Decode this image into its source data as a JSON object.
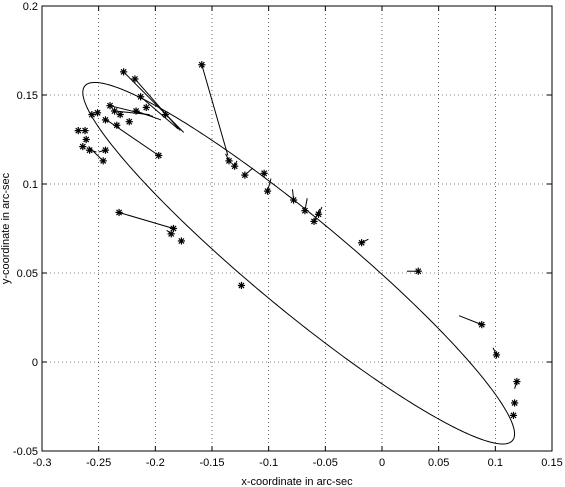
{
  "chart_data": {
    "type": "scatter",
    "xlabel": "x-coordinate in arc-sec",
    "ylabel": "y-coordinate in arc-sec",
    "xlim": [
      -0.3,
      0.15
    ],
    "ylim": [
      -0.05,
      0.2
    ],
    "xticks": [
      "-0.3",
      "-0.25",
      "-0.2",
      "-0.15",
      "-0.1",
      "-0.05",
      "0",
      "0.05",
      "0.1",
      "0.15"
    ],
    "yticks": [
      "-0.05",
      "0",
      "0.05",
      "0.1",
      "0.15",
      "0.2"
    ],
    "xtick_values": [
      -0.3,
      -0.25,
      -0.2,
      -0.15,
      -0.1,
      -0.05,
      0,
      0.05,
      0.1,
      0.15
    ],
    "ytick_values": [
      -0.05,
      0,
      0.05,
      0.1,
      0.15,
      0.2
    ],
    "grid": true,
    "ellipse": {
      "center": [
        -0.0735,
        0.0555
      ],
      "semi_major": 0.2138,
      "semi_minor": 0.0297,
      "angle_deg": -27.3
    },
    "points": [
      {
        "x": -0.159,
        "y": 0.167
      },
      {
        "x": -0.228,
        "y": 0.163
      },
      {
        "x": -0.218,
        "y": 0.159
      },
      {
        "x": -0.213,
        "y": 0.149
      },
      {
        "x": -0.208,
        "y": 0.143
      },
      {
        "x": -0.217,
        "y": 0.141
      },
      {
        "x": -0.24,
        "y": 0.144
      },
      {
        "x": -0.236,
        "y": 0.141
      },
      {
        "x": -0.231,
        "y": 0.139
      },
      {
        "x": -0.251,
        "y": 0.14
      },
      {
        "x": -0.256,
        "y": 0.139
      },
      {
        "x": -0.244,
        "y": 0.136
      },
      {
        "x": -0.234,
        "y": 0.133
      },
      {
        "x": -0.223,
        "y": 0.135
      },
      {
        "x": -0.191,
        "y": 0.139
      },
      {
        "x": -0.268,
        "y": 0.13
      },
      {
        "x": -0.262,
        "y": 0.13
      },
      {
        "x": -0.261,
        "y": 0.125
      },
      {
        "x": -0.264,
        "y": 0.121
      },
      {
        "x": -0.258,
        "y": 0.119
      },
      {
        "x": -0.244,
        "y": 0.119
      },
      {
        "x": -0.246,
        "y": 0.113
      },
      {
        "x": -0.197,
        "y": 0.116
      },
      {
        "x": -0.135,
        "y": 0.113
      },
      {
        "x": -0.13,
        "y": 0.11
      },
      {
        "x": -0.121,
        "y": 0.105
      },
      {
        "x": -0.104,
        "y": 0.106
      },
      {
        "x": -0.101,
        "y": 0.096
      },
      {
        "x": -0.078,
        "y": 0.091
      },
      {
        "x": -0.068,
        "y": 0.085
      },
      {
        "x": -0.056,
        "y": 0.083
      },
      {
        "x": -0.06,
        "y": 0.079
      },
      {
        "x": -0.018,
        "y": 0.067
      },
      {
        "x": 0.032,
        "y": 0.051
      },
      {
        "x": 0.088,
        "y": 0.021
      },
      {
        "x": 0.101,
        "y": 0.004
      },
      {
        "x": 0.119,
        "y": -0.011
      },
      {
        "x": 0.117,
        "y": -0.023
      },
      {
        "x": 0.116,
        "y": -0.03
      },
      {
        "x": -0.232,
        "y": 0.084
      },
      {
        "x": -0.184,
        "y": 0.075
      },
      {
        "x": -0.186,
        "y": 0.072
      },
      {
        "x": -0.177,
        "y": 0.068
      },
      {
        "x": -0.124,
        "y": 0.043
      }
    ],
    "residuals": [
      {
        "from": [
          -0.159,
          0.167
        ],
        "to": [
          -0.136,
          0.116
        ]
      },
      {
        "from": [
          -0.228,
          0.163
        ],
        "to": [
          -0.175,
          0.129
        ]
      },
      {
        "from": [
          -0.218,
          0.159
        ],
        "to": [
          -0.178,
          0.13
        ]
      },
      {
        "from": [
          -0.213,
          0.149
        ],
        "to": [
          -0.18,
          0.131
        ]
      },
      {
        "from": [
          -0.24,
          0.144
        ],
        "to": [
          -0.202,
          0.138
        ]
      },
      {
        "from": [
          -0.236,
          0.141
        ],
        "to": [
          -0.205,
          0.139
        ]
      },
      {
        "from": [
          -0.217,
          0.141
        ],
        "to": [
          -0.195,
          0.136
        ]
      },
      {
        "from": [
          -0.262,
          0.13
        ],
        "to": [
          -0.263,
          0.131
        ]
      },
      {
        "from": [
          -0.261,
          0.125
        ],
        "to": [
          -0.262,
          0.124
        ]
      },
      {
        "from": [
          -0.258,
          0.119
        ],
        "to": [
          -0.252,
          0.118
        ]
      },
      {
        "from": [
          -0.246,
          0.113
        ],
        "to": [
          -0.259,
          0.121
        ]
      },
      {
        "from": [
          -0.244,
          0.119
        ],
        "to": [
          -0.25,
          0.118
        ]
      },
      {
        "from": [
          -0.197,
          0.116
        ],
        "to": [
          -0.243,
          0.136
        ]
      },
      {
        "from": [
          -0.135,
          0.113
        ],
        "to": [
          -0.138,
          0.117
        ]
      },
      {
        "from": [
          -0.13,
          0.11
        ],
        "to": [
          -0.128,
          0.113
        ]
      },
      {
        "from": [
          -0.121,
          0.105
        ],
        "to": [
          -0.114,
          0.109
        ]
      },
      {
        "from": [
          -0.104,
          0.106
        ],
        "to": [
          -0.103,
          0.105
        ]
      },
      {
        "from": [
          -0.101,
          0.096
        ],
        "to": [
          -0.098,
          0.103
        ]
      },
      {
        "from": [
          -0.078,
          0.091
        ],
        "to": [
          -0.079,
          0.097
        ]
      },
      {
        "from": [
          -0.068,
          0.085
        ],
        "to": [
          -0.066,
          0.092
        ]
      },
      {
        "from": [
          -0.056,
          0.083
        ],
        "to": [
          -0.053,
          0.087
        ]
      },
      {
        "from": [
          -0.06,
          0.079
        ],
        "to": [
          -0.055,
          0.086
        ]
      },
      {
        "from": [
          -0.018,
          0.067
        ],
        "to": [
          -0.012,
          0.069
        ]
      },
      {
        "from": [
          0.032,
          0.051
        ],
        "to": [
          0.022,
          0.051
        ]
      },
      {
        "from": [
          0.088,
          0.021
        ],
        "to": [
          0.068,
          0.026
        ]
      },
      {
        "from": [
          0.101,
          0.004
        ],
        "to": [
          0.098,
          0.008
        ]
      },
      {
        "from": [
          0.119,
          -0.011
        ],
        "to": [
          0.117,
          -0.015
        ]
      },
      {
        "from": [
          0.117,
          -0.023
        ],
        "to": [
          0.12,
          -0.023
        ]
      },
      {
        "from": [
          -0.232,
          0.084
        ],
        "to": [
          -0.184,
          0.075
        ]
      },
      {
        "from": [
          -0.186,
          0.072
        ],
        "to": [
          -0.19,
          0.074
        ]
      },
      {
        "from": [
          -0.177,
          0.068
        ],
        "to": [
          -0.178,
          0.068
        ]
      },
      {
        "from": [
          -0.124,
          0.043
        ],
        "to": [
          -0.126,
          0.042
        ]
      }
    ]
  }
}
